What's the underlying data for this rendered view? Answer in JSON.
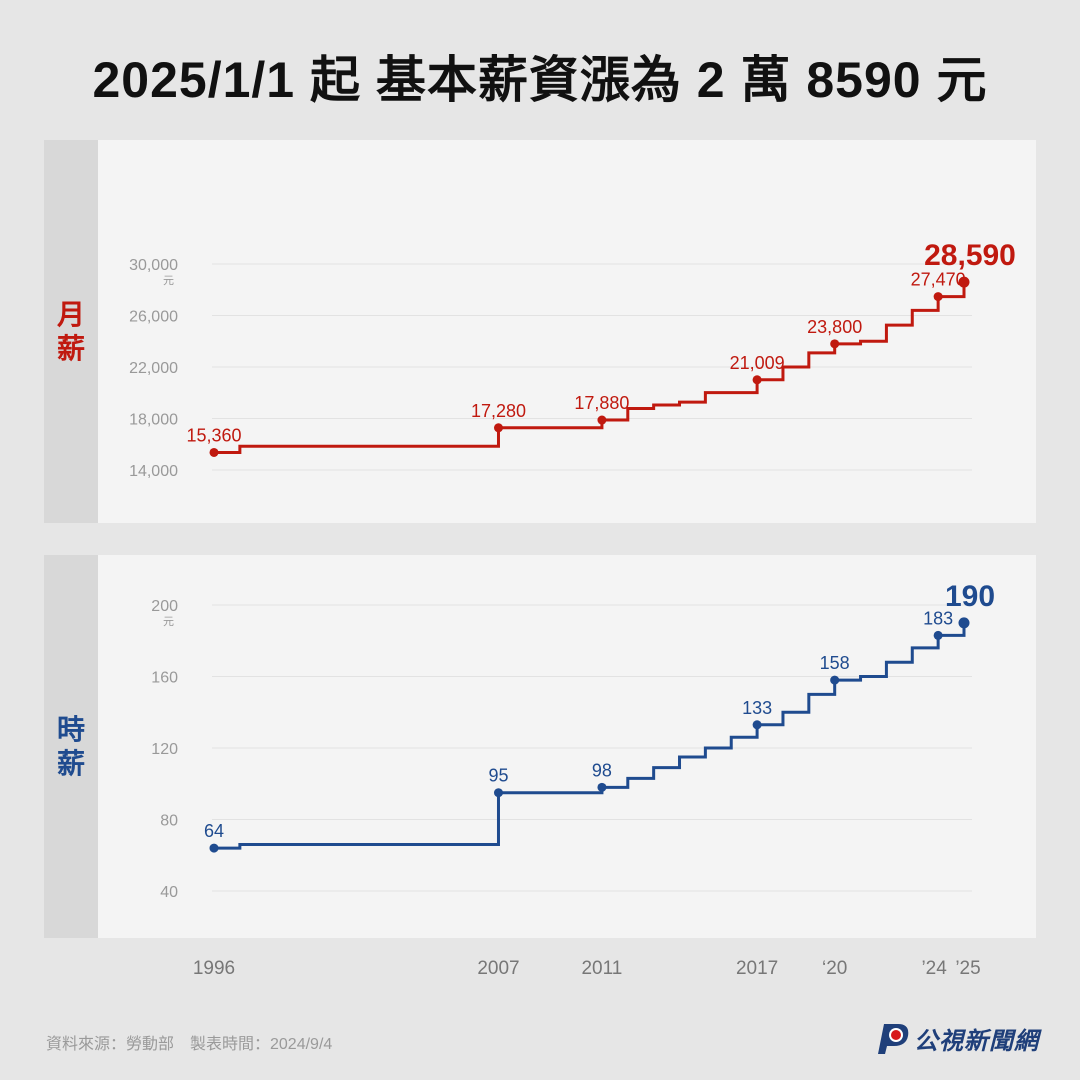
{
  "title": "2025/1/1 起 基本薪資漲為 2 萬 8590 元",
  "colors": {
    "monthly": "#c0190f",
    "hourly": "#1f4b8f",
    "axis_text": "#999999",
    "grid": "#e2e2e2"
  },
  "x_axis_ticks": [
    {
      "year": 1996,
      "label": "1996"
    },
    {
      "year": 2007,
      "label": "2007"
    },
    {
      "year": 2011,
      "label": "2011"
    },
    {
      "year": 2017,
      "label": "2017"
    },
    {
      "year": 2020,
      "label": "‘20"
    },
    {
      "year": 2024,
      "label": "’24"
    },
    {
      "year": 2025,
      "label": "’25"
    }
  ],
  "chart_data": [
    {
      "type": "line",
      "step": true,
      "panel_label": "月薪",
      "ylim": [
        14000,
        30000
      ],
      "yticks": [
        14000,
        18000,
        22000,
        26000,
        30000
      ],
      "ytick_labels": [
        "14,000",
        "18,000",
        "22,000",
        "26,000",
        "30,000"
      ],
      "y_unit": "元",
      "series": [
        {
          "points": [
            {
              "x": 1996,
              "y": 15360
            },
            {
              "x": 1997,
              "y": 15840
            },
            {
              "x": 2007,
              "y": 17280
            },
            {
              "x": 2011,
              "y": 17880
            },
            {
              "x": 2012,
              "y": 18780
            },
            {
              "x": 2013,
              "y": 19047
            },
            {
              "x": 2014,
              "y": 19273
            },
            {
              "x": 2015,
              "y": 20008
            },
            {
              "x": 2017,
              "y": 21009
            },
            {
              "x": 2018,
              "y": 22000
            },
            {
              "x": 2019,
              "y": 23100
            },
            {
              "x": 2020,
              "y": 23800
            },
            {
              "x": 2021,
              "y": 24000
            },
            {
              "x": 2022,
              "y": 25250
            },
            {
              "x": 2023,
              "y": 26400
            },
            {
              "x": 2024,
              "y": 27470
            },
            {
              "x": 2025,
              "y": 28590
            }
          ],
          "end_x": 2025
        }
      ],
      "annotations": [
        {
          "x": 1996,
          "y": 15360,
          "label": "15,360"
        },
        {
          "x": 2007,
          "y": 17280,
          "label": "17,280"
        },
        {
          "x": 2011,
          "y": 17880,
          "label": "17,880"
        },
        {
          "x": 2017,
          "y": 21009,
          "label": "21,009"
        },
        {
          "x": 2020,
          "y": 23800,
          "label": "23,800"
        },
        {
          "x": 2024,
          "y": 27470,
          "label": "27,470"
        },
        {
          "x": 2025,
          "y": 28590,
          "label": "28,590",
          "emphasis": true
        }
      ]
    },
    {
      "type": "line",
      "step": true,
      "panel_label": "時薪",
      "ylim": [
        40,
        200
      ],
      "yticks": [
        40,
        80,
        120,
        160,
        200
      ],
      "ytick_labels": [
        "40",
        "80",
        "120",
        "160",
        "200"
      ],
      "y_unit": "元",
      "series": [
        {
          "points": [
            {
              "x": 1996,
              "y": 64
            },
            {
              "x": 1997,
              "y": 66
            },
            {
              "x": 2007,
              "y": 95
            },
            {
              "x": 2011,
              "y": 98
            },
            {
              "x": 2012,
              "y": 103
            },
            {
              "x": 2013,
              "y": 109
            },
            {
              "x": 2014,
              "y": 115
            },
            {
              "x": 2015,
              "y": 120
            },
            {
              "x": 2016,
              "y": 126
            },
            {
              "x": 2017,
              "y": 133
            },
            {
              "x": 2018,
              "y": 140
            },
            {
              "x": 2019,
              "y": 150
            },
            {
              "x": 2020,
              "y": 158
            },
            {
              "x": 2021,
              "y": 160
            },
            {
              "x": 2022,
              "y": 168
            },
            {
              "x": 2023,
              "y": 176
            },
            {
              "x": 2024,
              "y": 183
            },
            {
              "x": 2025,
              "y": 190
            }
          ],
          "end_x": 2025
        }
      ],
      "annotations": [
        {
          "x": 1996,
          "y": 64,
          "label": "64"
        },
        {
          "x": 2007,
          "y": 95,
          "label": "95"
        },
        {
          "x": 2011,
          "y": 98,
          "label": "98"
        },
        {
          "x": 2017,
          "y": 133,
          "label": "133"
        },
        {
          "x": 2020,
          "y": 158,
          "label": "158"
        },
        {
          "x": 2024,
          "y": 183,
          "label": "183"
        },
        {
          "x": 2025,
          "y": 190,
          "label": "190",
          "emphasis": true
        }
      ]
    }
  ],
  "footer": {
    "source": "資料來源：勞動部　製表時間：2024/9/4",
    "logo_text": "公視新聞網"
  }
}
